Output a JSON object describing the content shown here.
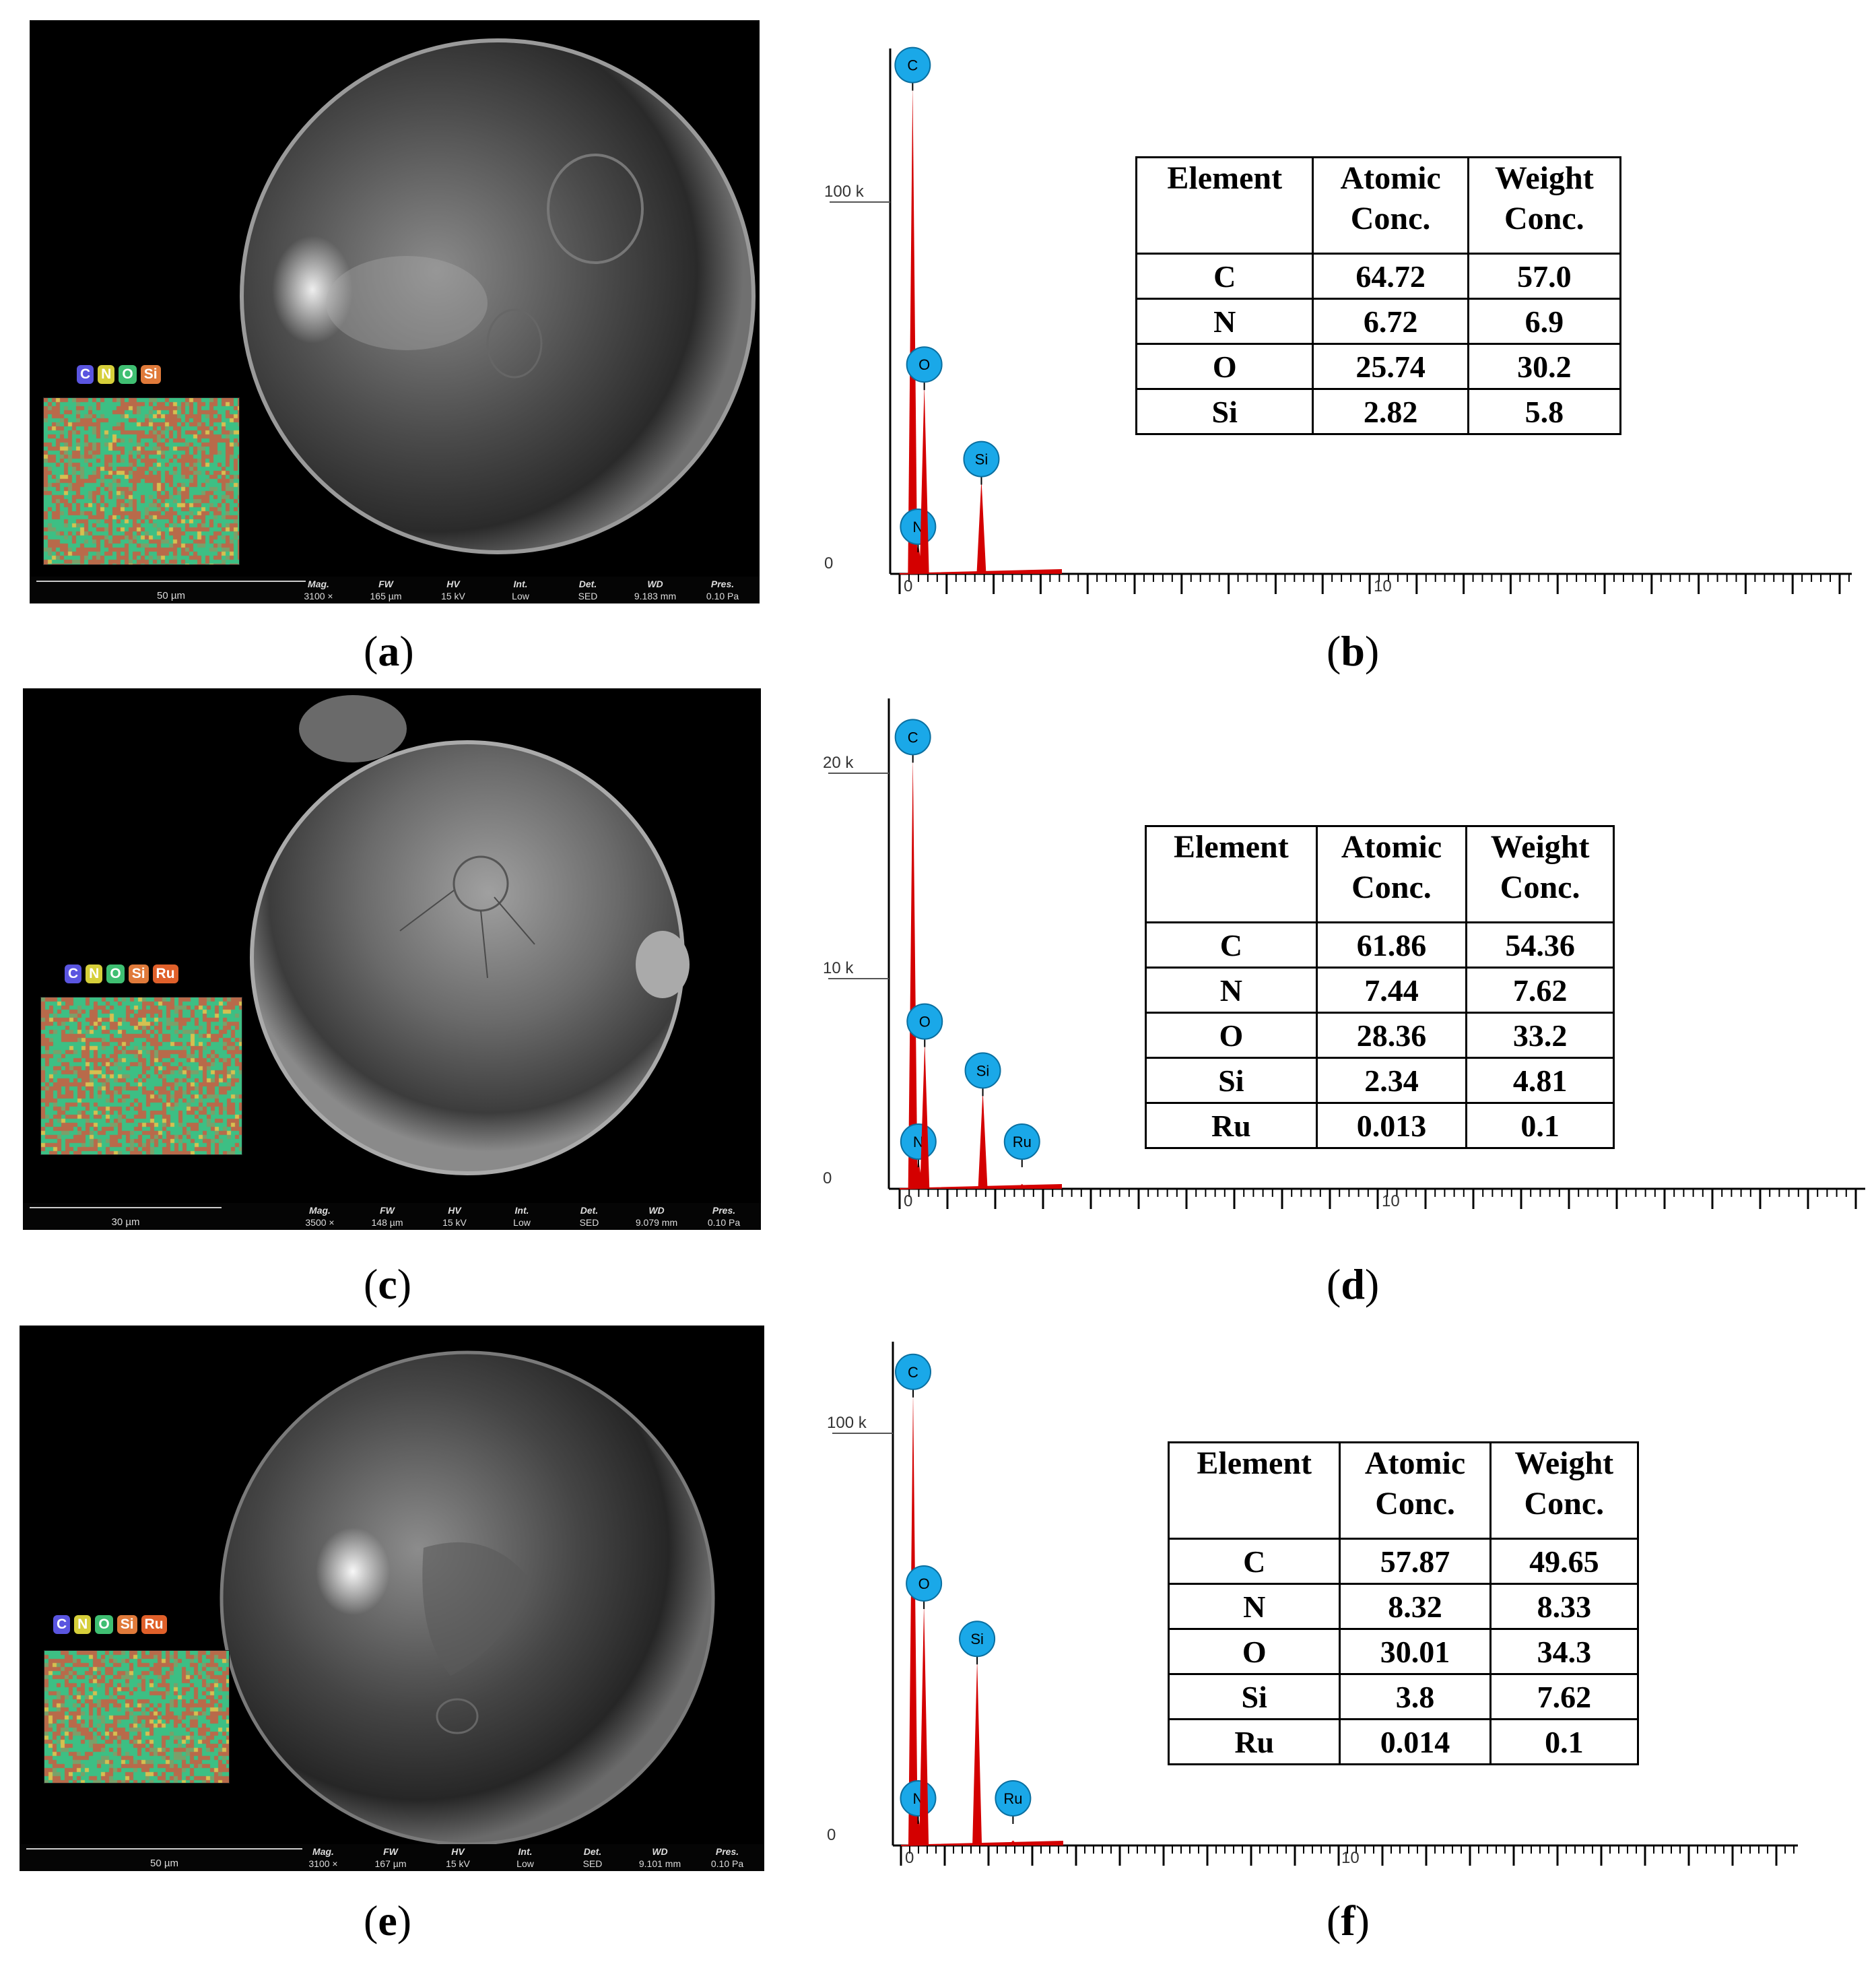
{
  "panels": [
    {
      "sem": {
        "scale_bar": "50 µm",
        "meta": [
          {
            "label": "Mag.",
            "value": "3100 ×"
          },
          {
            "label": "FW",
            "value": "165 µm"
          },
          {
            "label": "HV",
            "value": "15 kV"
          },
          {
            "label": "Int.",
            "value": "Low"
          },
          {
            "label": "Det.",
            "value": "SED"
          },
          {
            "label": "WD",
            "value": "9.183 mm"
          },
          {
            "label": "Pres.",
            "value": "0.10 Pa"
          }
        ],
        "map_elements": [
          "C",
          "N",
          "O",
          "Si"
        ]
      },
      "spectrum": {
        "y_ticks": [
          "100 k",
          "0"
        ],
        "x_ticks": [
          "0",
          "10"
        ],
        "peaks": [
          {
            "element": "C",
            "energy_keV": 0.277,
            "rel_height": 0.93
          },
          {
            "element": "N",
            "energy_keV": 0.392,
            "rel_height": 0.06
          },
          {
            "element": "O",
            "energy_keV": 0.525,
            "rel_height": 0.36
          },
          {
            "element": "Si",
            "energy_keV": 1.74,
            "rel_height": 0.18
          }
        ]
      },
      "table": {
        "headers": [
          "Element",
          "Atomic Conc.",
          "Weight Conc."
        ],
        "rows": [
          [
            "C",
            "64.72",
            "57.0"
          ],
          [
            "N",
            "6.72",
            "6.9"
          ],
          [
            "O",
            "25.74",
            "30.2"
          ],
          [
            "Si",
            "2.82",
            "5.8"
          ]
        ]
      },
      "caption_left": "a",
      "caption_right": "b"
    },
    {
      "sem": {
        "scale_bar": "30 µm",
        "meta": [
          {
            "label": "Mag.",
            "value": "3500 ×"
          },
          {
            "label": "FW",
            "value": "148 µm"
          },
          {
            "label": "HV",
            "value": "15 kV"
          },
          {
            "label": "Int.",
            "value": "Low"
          },
          {
            "label": "Det.",
            "value": "SED"
          },
          {
            "label": "WD",
            "value": "9.079 mm"
          },
          {
            "label": "Pres.",
            "value": "0.10 Pa"
          }
        ],
        "map_elements": [
          "C",
          "N",
          "O",
          "Si",
          "Ru"
        ]
      },
      "spectrum": {
        "y_ticks": [
          "20 k",
          "10 k",
          "0"
        ],
        "x_ticks": [
          "0",
          "10"
        ],
        "peaks": [
          {
            "element": "C",
            "energy_keV": 0.277,
            "rel_height": 0.88
          },
          {
            "element": "N",
            "energy_keV": 0.392,
            "rel_height": 0.06
          },
          {
            "element": "O",
            "energy_keV": 0.525,
            "rel_height": 0.3
          },
          {
            "element": "Si",
            "energy_keV": 1.74,
            "rel_height": 0.2
          },
          {
            "element": "Ru",
            "energy_keV": 2.56,
            "rel_height": 0.01
          }
        ]
      },
      "table": {
        "headers": [
          "Element",
          "Atomic Conc.",
          "Weight Conc."
        ],
        "rows": [
          [
            "C",
            "61.86",
            "54.36"
          ],
          [
            "N",
            "7.44",
            "7.62"
          ],
          [
            "O",
            "28.36",
            "33.2"
          ],
          [
            "Si",
            "2.34",
            "4.81"
          ],
          [
            "Ru",
            "0.013",
            "0.1"
          ]
        ]
      },
      "caption_left": "c",
      "caption_right": "d"
    },
    {
      "sem": {
        "scale_bar": "50 µm",
        "meta": [
          {
            "label": "Mag.",
            "value": "3100 ×"
          },
          {
            "label": "FW",
            "value": "167 µm"
          },
          {
            "label": "HV",
            "value": "15 kV"
          },
          {
            "label": "Int.",
            "value": "Low"
          },
          {
            "label": "Det.",
            "value": "SED"
          },
          {
            "label": "WD",
            "value": "9.101 mm"
          },
          {
            "label": "Pres.",
            "value": "0.10 Pa"
          }
        ],
        "map_elements": [
          "C",
          "N",
          "O",
          "Si",
          "Ru"
        ]
      },
      "spectrum": {
        "y_ticks": [
          "100 k",
          "0"
        ],
        "x_ticks": [
          "0",
          "10"
        ],
        "peaks": [
          {
            "element": "C",
            "energy_keV": 0.277,
            "rel_height": 0.9
          },
          {
            "element": "N",
            "energy_keV": 0.392,
            "rel_height": 0.06
          },
          {
            "element": "O",
            "energy_keV": 0.525,
            "rel_height": 0.48
          },
          {
            "element": "Si",
            "energy_keV": 1.74,
            "rel_height": 0.37
          },
          {
            "element": "Ru",
            "energy_keV": 2.56,
            "rel_height": 0.01
          }
        ]
      },
      "table": {
        "headers": [
          "Element",
          "Atomic Conc.",
          "Weight Conc."
        ],
        "rows": [
          [
            "C",
            "57.87",
            "49.65"
          ],
          [
            "N",
            "8.32",
            "8.33"
          ],
          [
            "O",
            "30.01",
            "34.3"
          ],
          [
            "Si",
            "3.8",
            "7.62"
          ],
          [
            "Ru",
            "0.014",
            "0.1"
          ]
        ]
      },
      "caption_left": "e",
      "caption_right": "f"
    }
  ],
  "chip_colors": {
    "C": "#5a55e0",
    "N": "#d6cf3a",
    "O": "#3fbf72",
    "Si": "#e07a3a",
    "Ru": "#e0602a"
  },
  "peak_color": "#d40000",
  "marker_color": "#1aa8e8"
}
